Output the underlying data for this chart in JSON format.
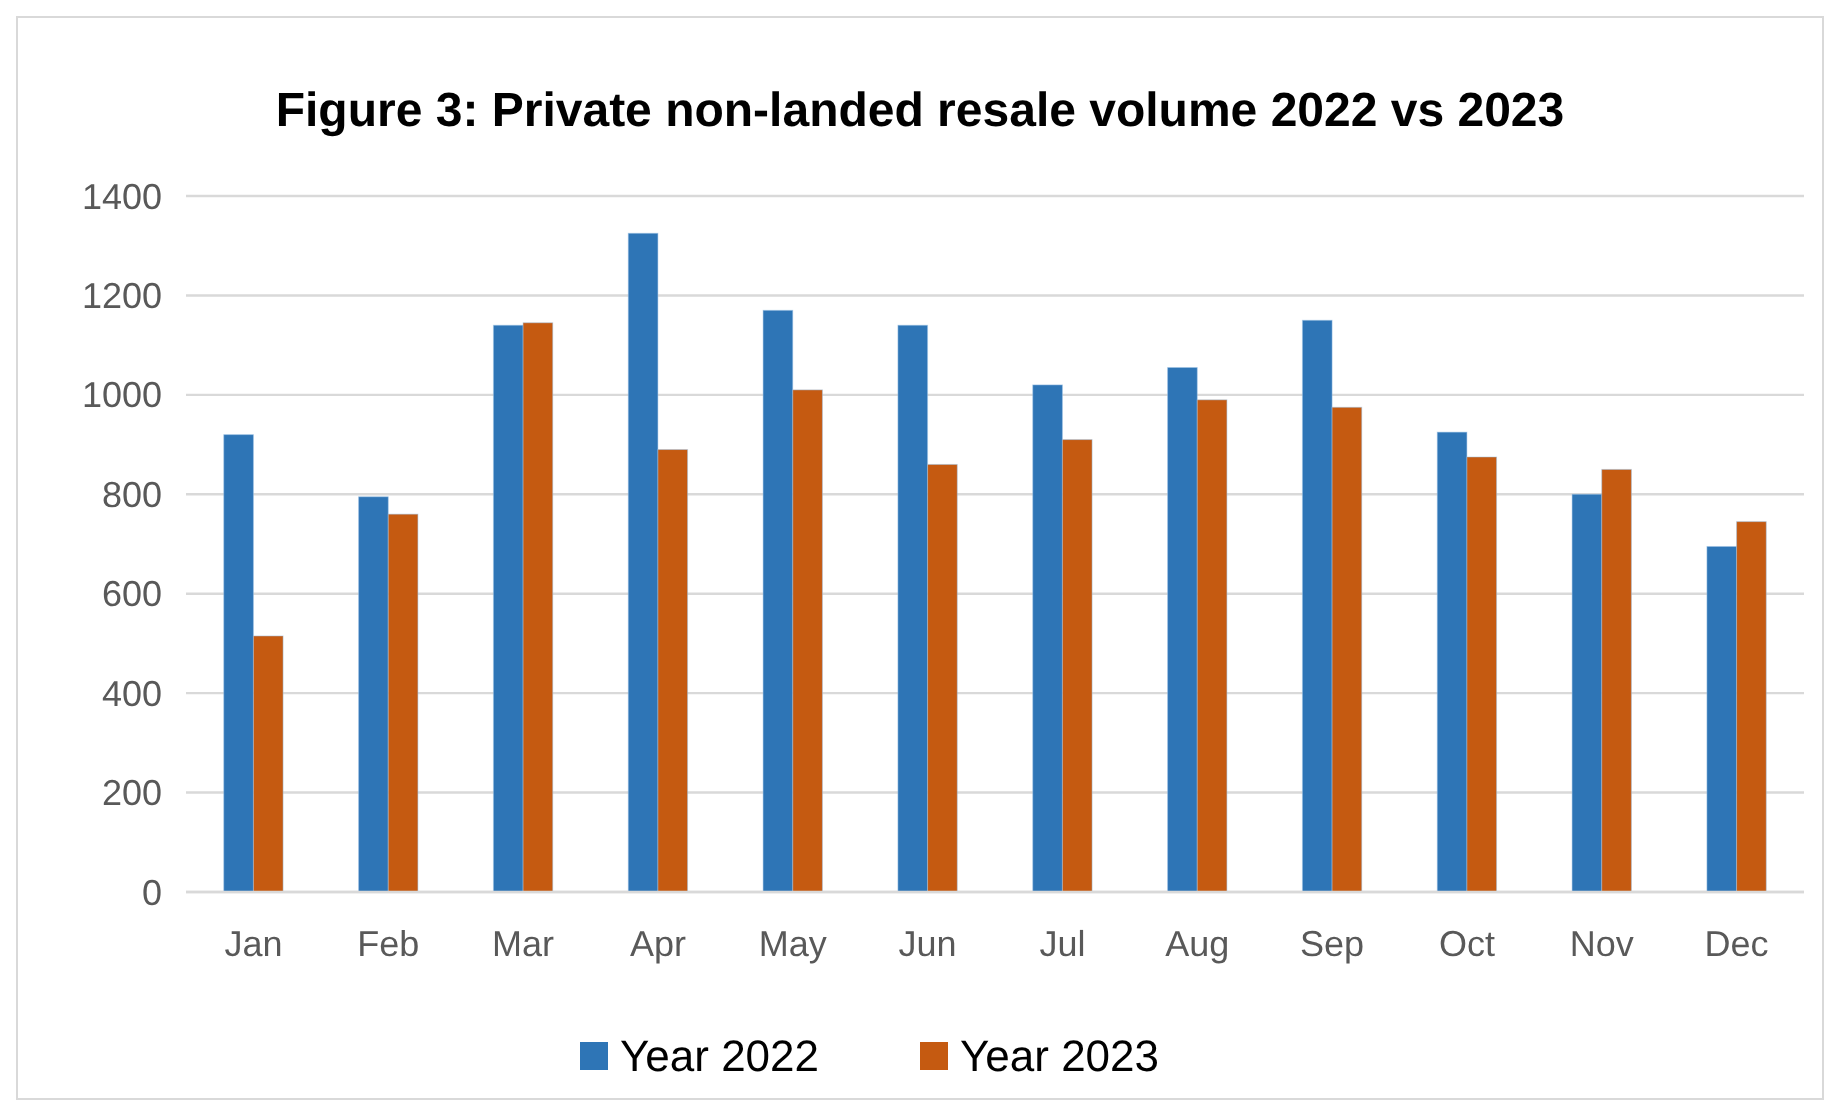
{
  "chart_data": {
    "type": "bar",
    "title": "Figure 3: Private non-landed resale volume 2022 vs 2023",
    "categories": [
      "Jan",
      "Feb",
      "Mar",
      "Apr",
      "May",
      "Jun",
      "Jul",
      "Aug",
      "Sep",
      "Oct",
      "Nov",
      "Dec"
    ],
    "series": [
      {
        "name": "Year 2022",
        "color": "#2e75b6",
        "values": [
          920,
          795,
          1140,
          1325,
          1170,
          1140,
          1020,
          1055,
          1150,
          925,
          800,
          695
        ]
      },
      {
        "name": "Year 2023",
        "color": "#c55a11",
        "values": [
          515,
          760,
          1145,
          890,
          1010,
          860,
          910,
          990,
          975,
          875,
          850,
          745
        ]
      }
    ],
    "ylim": [
      0,
      1400
    ],
    "yticks": [
      0,
      200,
      400,
      600,
      800,
      1000,
      1200,
      1400
    ],
    "grid": "y",
    "legend": "bottom"
  }
}
